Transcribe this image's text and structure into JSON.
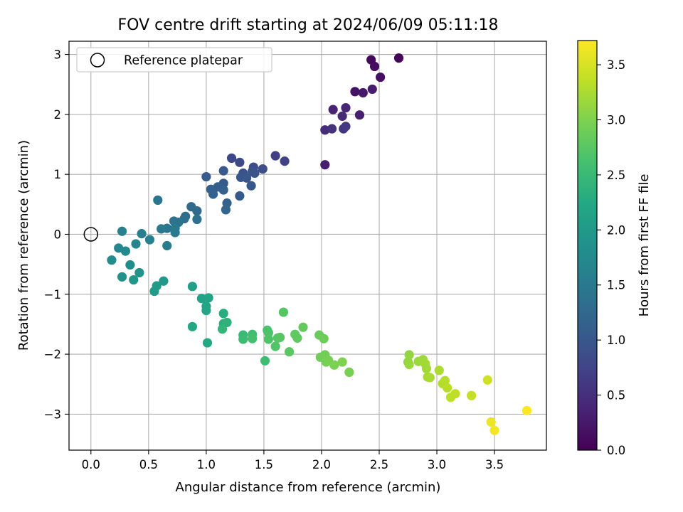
{
  "chart_data": {
    "type": "scatter",
    "title": "FOV centre drift starting at 2024/06/09 05:11:18",
    "xlabel": "Angular distance from reference (arcmin)",
    "ylabel": "Rotation from reference (arcmin)",
    "colorbar_label": "Hours from first FF file",
    "colormap": "viridis",
    "xlim": [
      -0.19,
      3.95
    ],
    "ylim": [
      -3.6,
      3.22
    ],
    "clim": [
      0,
      3.72
    ],
    "xticks": [
      0,
      0.5,
      1,
      1.5,
      2,
      2.5,
      3,
      3.5
    ],
    "xtick_labels": [
      "0.0",
      "0.5",
      "1.0",
      "1.5",
      "2.0",
      "2.5",
      "3.0",
      "3.5"
    ],
    "yticks": [
      -3,
      -2,
      -1,
      0,
      1,
      2,
      3
    ],
    "ytick_labels": [
      "−3",
      "−2",
      "−1",
      "0",
      "1",
      "2",
      "3"
    ],
    "cticks": [
      0,
      0.5,
      1,
      1.5,
      2,
      2.5,
      3,
      3.5
    ],
    "ctick_labels": [
      "0.0",
      "0.5",
      "1.0",
      "1.5",
      "2.0",
      "2.5",
      "3.0",
      "3.5"
    ],
    "grid": true,
    "legend": {
      "position": "top-left",
      "entries": [
        {
          "label": "Reference platepar",
          "marker": "open-circle",
          "color": "#000000"
        }
      ]
    },
    "reference_point": {
      "x": 0,
      "y": 0
    },
    "points": [
      [
        2.67,
        2.94,
        0.03
      ],
      [
        2.43,
        2.91,
        0.08
      ],
      [
        2.46,
        2.8,
        0.12
      ],
      [
        2.51,
        2.62,
        0.16
      ],
      [
        2.29,
        2.38,
        0.2
      ],
      [
        2.36,
        2.36,
        0.24
      ],
      [
        2.44,
        2.42,
        0.28
      ],
      [
        2.33,
        1.99,
        0.32
      ],
      [
        2.1,
        2.08,
        0.36
      ],
      [
        2.21,
        2.11,
        0.4
      ],
      [
        2.18,
        1.97,
        0.44
      ],
      [
        2.03,
        1.74,
        0.48
      ],
      [
        2.09,
        1.76,
        0.52
      ],
      [
        2.19,
        1.76,
        0.56
      ],
      [
        2.21,
        1.8,
        0.6
      ],
      [
        2.03,
        1.16,
        0.3
      ],
      [
        1.6,
        1.31,
        0.7
      ],
      [
        1.68,
        1.22,
        0.72
      ],
      [
        1.22,
        1.27,
        0.8
      ],
      [
        1.29,
        1.2,
        0.83
      ],
      [
        1.41,
        1.12,
        0.86
      ],
      [
        1.49,
        1.09,
        0.89
      ],
      [
        1.32,
        1.02,
        0.92
      ],
      [
        1.4,
        1.05,
        0.94
      ],
      [
        1.42,
        1.02,
        0.96
      ],
      [
        1.3,
        0.95,
        0.98
      ],
      [
        1.35,
        0.94,
        1.0
      ],
      [
        1.39,
        0.81,
        1.02
      ],
      [
        1.15,
        1.06,
        1.04
      ],
      [
        1.0,
        0.96,
        1.06
      ],
      [
        1.15,
        0.85,
        1.08
      ],
      [
        1.1,
        0.79,
        1.1
      ],
      [
        1.04,
        0.75,
        1.12
      ],
      [
        1.06,
        0.67,
        1.14
      ],
      [
        1.15,
        0.74,
        1.16
      ],
      [
        1.18,
        0.52,
        1.18
      ],
      [
        1.17,
        0.41,
        1.2
      ],
      [
        1.29,
        0.64,
        1.05
      ],
      [
        0.92,
        0.39,
        1.28
      ],
      [
        0.87,
        0.46,
        1.3
      ],
      [
        0.81,
        0.26,
        1.33
      ],
      [
        0.82,
        0.3,
        1.36
      ],
      [
        0.92,
        0.25,
        1.38
      ],
      [
        0.72,
        0.22,
        1.4
      ],
      [
        0.76,
        0.2,
        1.42
      ],
      [
        0.58,
        0.57,
        1.44
      ],
      [
        0.66,
        0.1,
        1.46
      ],
      [
        0.73,
        0.1,
        1.48
      ],
      [
        0.61,
        0.09,
        1.5
      ],
      [
        0.73,
        0.03,
        1.52
      ],
      [
        0.66,
        -0.19,
        1.54
      ],
      [
        0.44,
        0.01,
        1.56
      ],
      [
        0.51,
        -0.09,
        1.6
      ],
      [
        0.27,
        0.05,
        1.62
      ],
      [
        0.39,
        -0.16,
        1.66
      ],
      [
        0.24,
        -0.23,
        1.7
      ],
      [
        0.3,
        -0.28,
        1.74
      ],
      [
        0.18,
        -0.43,
        1.78
      ],
      [
        0.34,
        -0.51,
        1.82
      ],
      [
        0.27,
        -0.71,
        1.86
      ],
      [
        0.42,
        -0.64,
        1.9
      ],
      [
        0.37,
        -0.76,
        1.94
      ],
      [
        0.63,
        -0.78,
        1.97
      ],
      [
        0.57,
        -0.86,
        2.0
      ],
      [
        0.55,
        -0.95,
        2.03
      ],
      [
        0.88,
        -0.87,
        2.1
      ],
      [
        0.96,
        -1.07,
        2.14
      ],
      [
        1.02,
        -1.06,
        2.16
      ],
      [
        1.0,
        -1.2,
        2.18
      ],
      [
        1.0,
        -1.27,
        2.2
      ],
      [
        0.88,
        -1.54,
        2.22
      ],
      [
        1.01,
        -1.81,
        2.24
      ],
      [
        1.15,
        -1.32,
        2.3
      ],
      [
        1.15,
        -1.49,
        2.34
      ],
      [
        1.18,
        -1.47,
        2.38
      ],
      [
        1.14,
        -1.58,
        2.42
      ],
      [
        1.32,
        -1.68,
        2.5
      ],
      [
        1.32,
        -1.75,
        2.54
      ],
      [
        1.4,
        -1.67,
        2.57
      ],
      [
        1.4,
        -1.74,
        2.6
      ],
      [
        1.51,
        -2.11,
        2.55
      ],
      [
        1.53,
        -1.6,
        2.64
      ],
      [
        1.54,
        -1.64,
        2.66
      ],
      [
        1.54,
        -1.75,
        2.68
      ],
      [
        1.6,
        -1.87,
        2.7
      ],
      [
        1.62,
        -1.73,
        2.72
      ],
      [
        1.64,
        -1.72,
        2.74
      ],
      [
        1.67,
        -1.3,
        2.72
      ],
      [
        1.72,
        -1.96,
        2.76
      ],
      [
        1.77,
        -1.67,
        2.78
      ],
      [
        1.79,
        -1.73,
        2.8
      ],
      [
        1.84,
        -1.55,
        2.82
      ],
      [
        1.98,
        -1.68,
        2.86
      ],
      [
        2.02,
        -1.74,
        2.88
      ],
      [
        1.99,
        -2.05,
        2.9
      ],
      [
        2.03,
        -2.01,
        2.92
      ],
      [
        2.04,
        -2.13,
        2.94
      ],
      [
        2.06,
        -2.1,
        2.96
      ],
      [
        2.11,
        -2.18,
        2.98
      ],
      [
        2.18,
        -2.13,
        3.0
      ],
      [
        2.24,
        -2.3,
        2.96
      ],
      [
        2.76,
        -2.01,
        3.1
      ],
      [
        2.75,
        -2.13,
        3.12
      ],
      [
        2.76,
        -2.17,
        3.14
      ],
      [
        2.84,
        -2.12,
        3.16
      ],
      [
        2.88,
        -2.09,
        3.18
      ],
      [
        2.9,
        -2.16,
        3.2
      ],
      [
        2.91,
        -2.24,
        3.2
      ],
      [
        2.92,
        -2.38,
        3.22
      ],
      [
        2.94,
        -2.39,
        3.24
      ],
      [
        3.02,
        -2.27,
        3.26
      ],
      [
        3.05,
        -2.49,
        3.28
      ],
      [
        3.07,
        -2.44,
        3.3
      ],
      [
        3.09,
        -2.56,
        3.32
      ],
      [
        3.12,
        -2.72,
        3.34
      ],
      [
        3.16,
        -2.66,
        3.36
      ],
      [
        3.3,
        -2.69,
        3.38
      ],
      [
        3.44,
        -2.43,
        3.45
      ],
      [
        3.47,
        -3.13,
        3.62
      ],
      [
        3.5,
        -3.27,
        3.66
      ],
      [
        3.78,
        -2.94,
        3.72
      ]
    ]
  }
}
